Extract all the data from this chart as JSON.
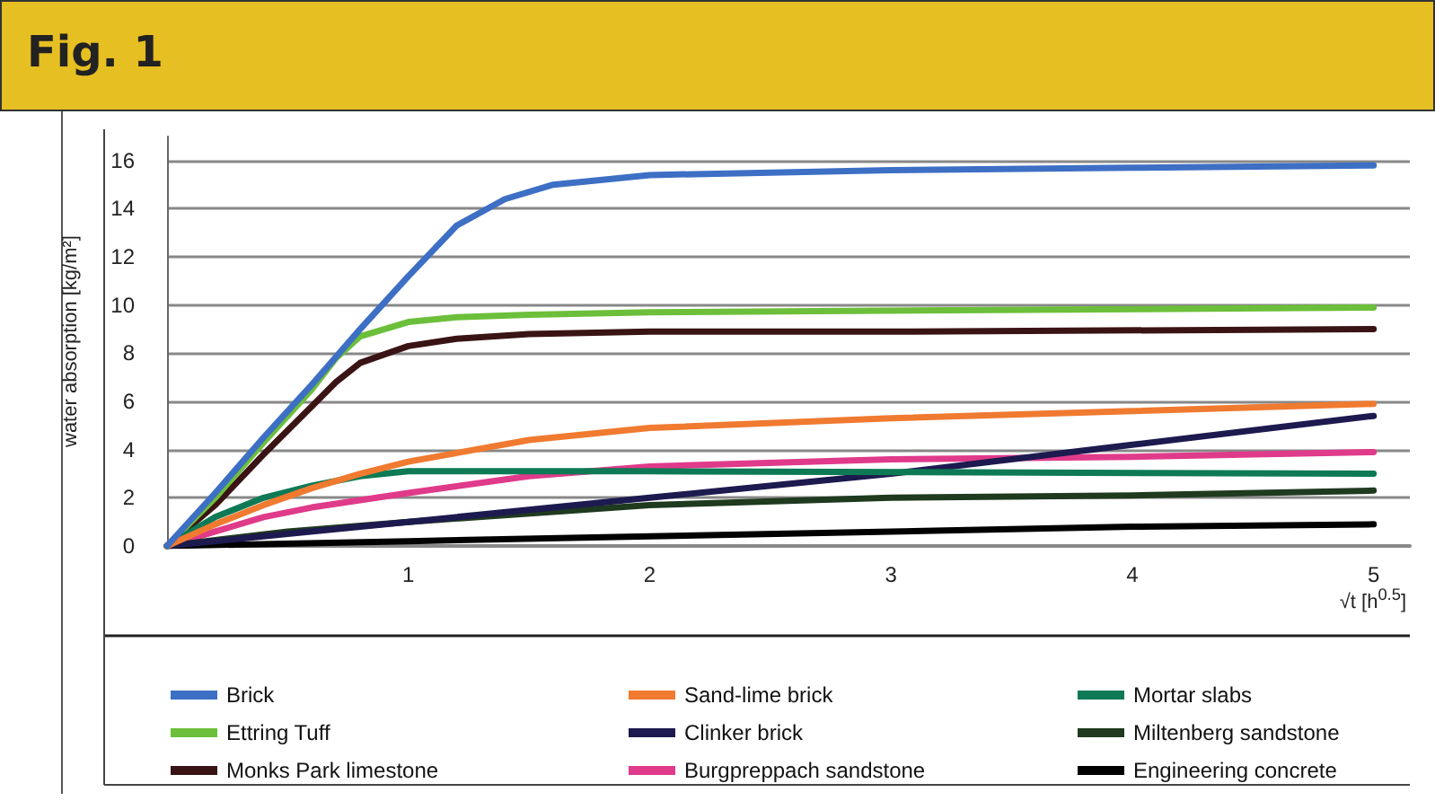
{
  "chart_data": {
    "type": "line",
    "title": "Fig. 1",
    "xlabel": "√t [h$^{0.5}$]",
    "ylabel": "water absorption [kg/m²]",
    "xlim": [
      0,
      5.15
    ],
    "xticks": [
      1,
      2,
      3,
      4,
      5
    ],
    "ylim": [
      0,
      17
    ],
    "yticks": [
      0,
      2,
      4,
      6,
      8,
      10,
      12,
      14,
      16
    ],
    "grid": "y",
    "legend": "bottom",
    "marker": "none",
    "line_style": "solid",
    "series": [
      {
        "name": "Brick",
        "color": "#3d6fc4",
        "x": [
          0,
          0.2,
          0.4,
          0.6,
          0.8,
          1,
          1.2,
          1.4,
          1.6,
          2,
          3,
          4,
          5
        ],
        "values": [
          0,
          2.2,
          4.5,
          6.7,
          9,
          11.2,
          13.3,
          14.4,
          15,
          15.4,
          15.6,
          15.7,
          15.8
        ]
      },
      {
        "name": "Sand-lime brick",
        "color": "#f07a30",
        "x": [
          0,
          0.2,
          0.4,
          0.6,
          0.8,
          1,
          1.5,
          2,
          3,
          4,
          5
        ],
        "values": [
          0,
          0.9,
          1.7,
          2.4,
          3.0,
          3.5,
          4.4,
          4.9,
          5.3,
          5.6,
          5.9
        ]
      },
      {
        "name": "Mortar slabs",
        "color": "#0d7a55",
        "x": [
          0,
          0.2,
          0.4,
          0.6,
          0.8,
          1,
          1.5,
          2,
          5
        ],
        "values": [
          0,
          1.2,
          2.0,
          2.5,
          2.9,
          3.1,
          3.1,
          3.1,
          3.0
        ]
      },
      {
        "name": "Ettring Tuff",
        "color": "#6cbf3a",
        "x": [
          0,
          0.2,
          0.4,
          0.6,
          0.7,
          0.8,
          1,
          1.2,
          1.5,
          2,
          5
        ],
        "values": [
          0,
          2.0,
          4.3,
          6.5,
          7.8,
          8.7,
          9.3,
          9.5,
          9.6,
          9.7,
          9.9
        ]
      },
      {
        "name": "Clinker brick",
        "color": "#1d1a4f",
        "x": [
          0,
          0.5,
          1,
          2,
          3,
          4,
          5
        ],
        "values": [
          0,
          0.5,
          1.0,
          2.0,
          3.0,
          4.2,
          5.4
        ]
      },
      {
        "name": "Miltenberg sandstone",
        "color": "#1f3a1f",
        "x": [
          0,
          0.5,
          1,
          2,
          3,
          4,
          5
        ],
        "values": [
          0,
          0.6,
          1.0,
          1.7,
          2.0,
          2.1,
          2.3
        ]
      },
      {
        "name": "Monks Park limestone",
        "color": "#3a1414",
        "x": [
          0,
          0.2,
          0.4,
          0.6,
          0.7,
          0.8,
          1,
          1.2,
          1.5,
          2,
          3,
          5
        ],
        "values": [
          0,
          1.7,
          3.8,
          5.8,
          6.8,
          7.6,
          8.3,
          8.6,
          8.8,
          8.9,
          8.9,
          9.0
        ]
      },
      {
        "name": "Burgpreppach sandstone",
        "color": "#e03a8a",
        "x": [
          0,
          0.2,
          0.4,
          0.6,
          0.8,
          1,
          1.5,
          2,
          3,
          4,
          5
        ],
        "values": [
          0,
          0.6,
          1.2,
          1.6,
          1.9,
          2.2,
          2.9,
          3.3,
          3.6,
          3.7,
          3.9
        ]
      },
      {
        "name": "Engineering concrete",
        "color": "#000000",
        "x": [
          0,
          1,
          2,
          3,
          4,
          5
        ],
        "values": [
          0,
          0.2,
          0.4,
          0.6,
          0.8,
          0.9
        ]
      }
    ]
  }
}
